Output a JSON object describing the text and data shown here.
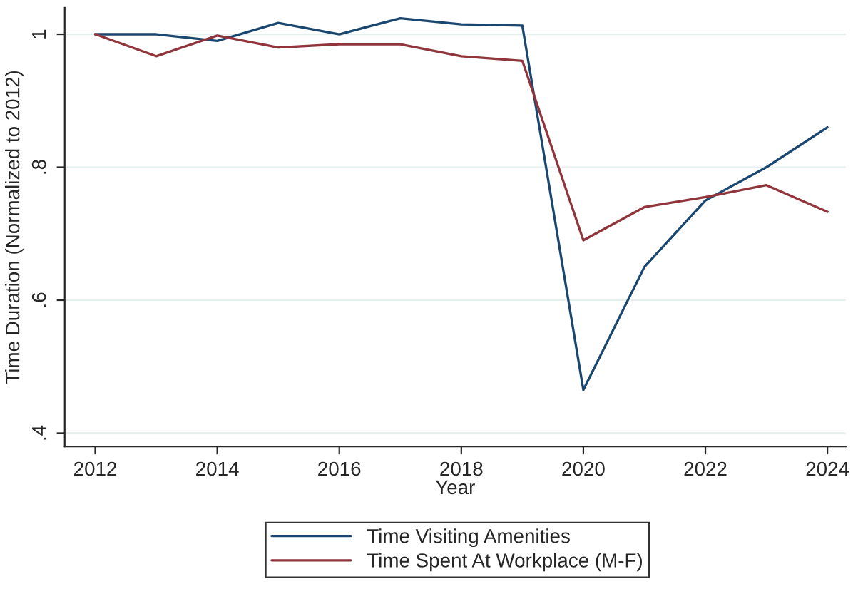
{
  "chart_data": {
    "type": "line",
    "xlabel": "Year",
    "ylabel": "Time Duration (Normalized to 2012)",
    "x": [
      2012,
      2013,
      2014,
      2015,
      2016,
      2017,
      2018,
      2019,
      2020,
      2021,
      2022,
      2023,
      2024
    ],
    "series": [
      {
        "name": "Time Visiting Amenities",
        "color": "#1a476f",
        "values": [
          1.0,
          1.0,
          0.99,
          1.017,
          1.0,
          1.024,
          1.015,
          1.013,
          0.465,
          0.65,
          0.75,
          0.8,
          0.86
        ]
      },
      {
        "name": "Time Spent At Workplace (M-F)",
        "color": "#90353b",
        "values": [
          1.0,
          0.967,
          0.998,
          0.98,
          0.985,
          0.985,
          0.967,
          0.96,
          0.69,
          0.74,
          0.755,
          0.773,
          0.733
        ]
      }
    ],
    "xlim": [
      2011.5,
      2024.3
    ],
    "ylim": [
      0.38,
      1.04
    ],
    "xticks": [
      2012,
      2014,
      2016,
      2018,
      2020,
      2022,
      2024
    ],
    "yticks": [
      {
        "value": 0.4,
        "label": ".4"
      },
      {
        "value": 0.6,
        "label": ".6"
      },
      {
        "value": 0.8,
        "label": ".8"
      },
      {
        "value": 1,
        "label": "1"
      }
    ],
    "grid": "y",
    "legend": "bottom",
    "marker": "none",
    "line_style": "solid"
  }
}
